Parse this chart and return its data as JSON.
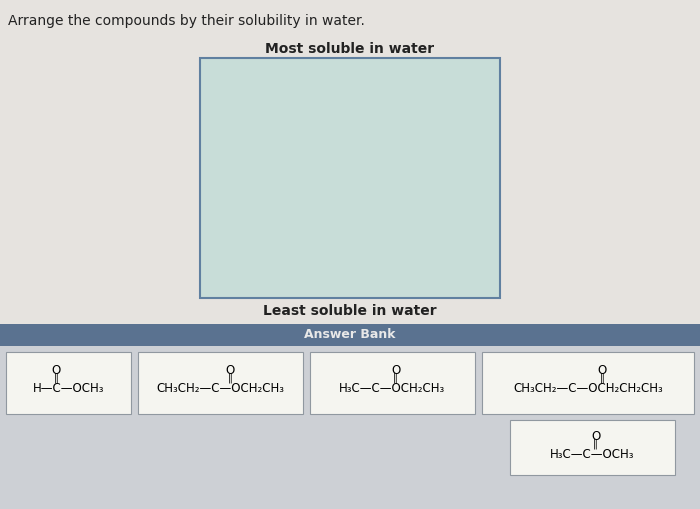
{
  "title": "Arrange the compounds by their solubility in water.",
  "most_soluble_label": "Most soluble in water",
  "least_soluble_label": "Least soluble in water",
  "answer_bank_label": "Answer Bank",
  "bg_color": "#e6e3df",
  "box_bg_color": "#c8ddd8",
  "box_border_color": "#6080a0",
  "answer_bank_header_bg": "#5a7290",
  "answer_bank_header_color": "#e8e8e8",
  "answer_bank_bg": "#cdd0d5",
  "compound_box_bg": "#f5f5f0",
  "compound_box_border": "#9098a0",
  "fig_w": 7.0,
  "fig_h": 5.09,
  "dpi": 100
}
